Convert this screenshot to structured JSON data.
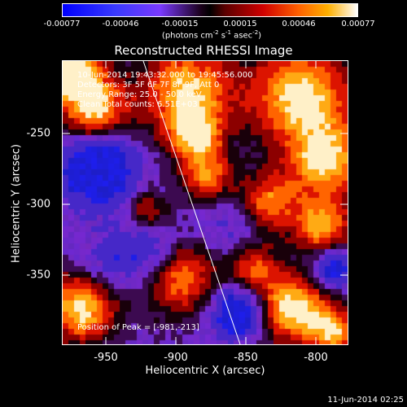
{
  "colorbar": {
    "labels": [
      "-0.00077",
      "-0.00046",
      "-0.00015",
      "0.00015",
      "0.00046",
      "0.00077"
    ],
    "units_text": "(photons cm",
    "units_exp1": "-2",
    "units_mid": " s",
    "units_exp2": "-1",
    "units_mid2": " asec",
    "units_exp3": "-2",
    "units_end": ")"
  },
  "title": "Reconstructed RHESSI Image",
  "info": {
    "time_range": "10-Jun-2014 19:43:32.000 to 19:45:56.000",
    "detectors": "Detectors: 3F 5F 6F 7F 8F 9F, Att 0",
    "energy": "Energy Range: 25.0 - 50.0 keV",
    "clean": "Clean     Total counts: 6.51E+03",
    "peak": "Position of Peak = [-981,-213]"
  },
  "axes": {
    "xlabel": "Heliocentric X (arcsec)",
    "ylabel": "Heliocentric Y (arcsec)",
    "xticks": [
      "-950",
      "-900",
      "-850",
      "-800"
    ],
    "yticks": [
      "-250",
      "-300",
      "-350"
    ]
  },
  "timestamp": "11-Jun-2014 02:25",
  "colors": {
    "background": "#000000",
    "limb_line": "#ffffff"
  }
}
